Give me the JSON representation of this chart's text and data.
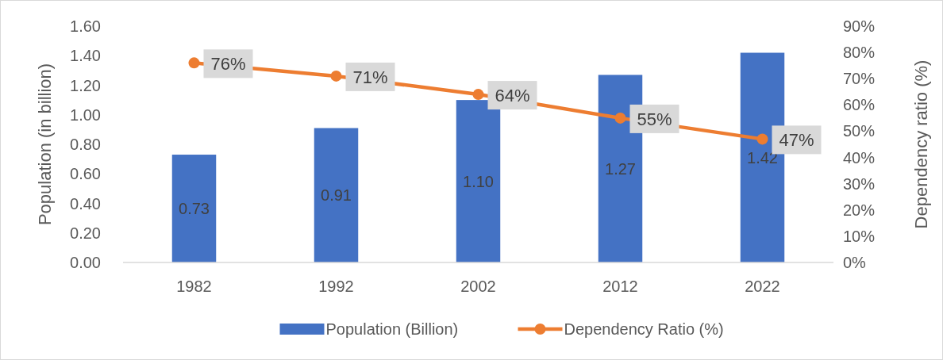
{
  "chart_data": {
    "type": "bar",
    "categories": [
      "1982",
      "1992",
      "2002",
      "2012",
      "2022"
    ],
    "ylabel": "Population (in billion)",
    "y2label": "Dependency ratio (%)",
    "ylim": [
      0,
      1.6
    ],
    "yticks": [
      {
        "value": 0,
        "label": "0.00"
      },
      {
        "value": 0.2,
        "label": "0.20"
      },
      {
        "value": 0.4,
        "label": "0.40"
      },
      {
        "value": 0.6,
        "label": "0.60"
      },
      {
        "value": 0.8,
        "label": "0.80"
      },
      {
        "value": 1,
        "label": "1.00"
      },
      {
        "value": 1.2,
        "label": "1.20"
      },
      {
        "value": 1.4,
        "label": "1.40"
      },
      {
        "value": 1.6,
        "label": "1.60"
      }
    ],
    "y2lim": [
      0,
      90
    ],
    "y2ticks": [
      {
        "value": 0,
        "label": "0%"
      },
      {
        "value": 10,
        "label": "10%"
      },
      {
        "value": 20,
        "label": "20%"
      },
      {
        "value": 30,
        "label": "30%"
      },
      {
        "value": 40,
        "label": "40%"
      },
      {
        "value": 50,
        "label": "50%"
      },
      {
        "value": 60,
        "label": "60%"
      },
      {
        "value": 70,
        "label": "70%"
      },
      {
        "value": 80,
        "label": "80%"
      },
      {
        "value": 90,
        "label": "90%"
      }
    ],
    "series": [
      {
        "name": "Population (Billion)",
        "color": "#4472c4",
        "values": [
          0.73,
          0.91,
          1.1,
          1.27,
          1.42
        ],
        "value_labels": [
          "0.73",
          "0.91",
          "1.10",
          "1.27",
          "1.42"
        ]
      },
      {
        "name": "Dependency Ratio (%)",
        "type": "line",
        "axis": "y2",
        "color": "#ed7d31",
        "marker": "circle",
        "values": [
          76,
          71,
          64,
          55,
          47
        ],
        "value_labels": [
          "76%",
          "71%",
          "64%",
          "55%",
          "47%"
        ]
      }
    ],
    "legend": "bottom",
    "grid": false
  }
}
